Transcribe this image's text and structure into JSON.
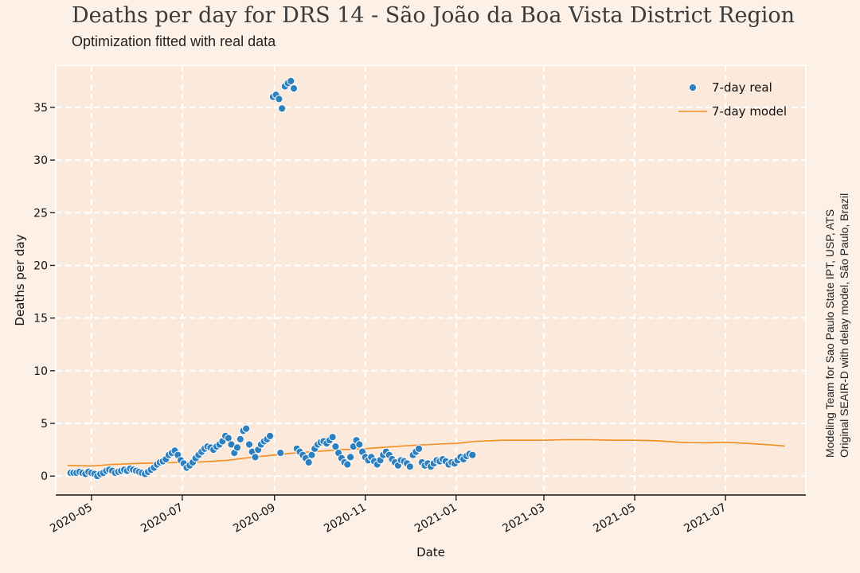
{
  "chart_data": {
    "type": "scatter",
    "title": "Deaths per day for DRS 14 - São João da Boa Vista District Region",
    "subtitle": "Optimization fitted with real data",
    "xlabel": "Date",
    "ylabel": "Deaths per day",
    "side_note": [
      "Modeling Team for Sao Paulo State IPT, USP, ATS",
      "Original SEAIR-D with delay model, São Paulo, Brazil"
    ],
    "x_range": [
      "2020-04-07",
      "2021-08-24"
    ],
    "ylim": [
      -1.8,
      39
    ],
    "x_ticks": [
      "2020-05",
      "2020-07",
      "2020-09",
      "2020-11",
      "2021-01",
      "2021-03",
      "2021-05",
      "2021-07"
    ],
    "y_ticks": [
      0,
      5,
      10,
      15,
      20,
      25,
      30,
      35
    ],
    "grid": true,
    "legend_position": "top-right",
    "colors": {
      "real": "#2e7fbe",
      "model": "#f28e1e",
      "plot_bg": "#fbe9dc",
      "grid": "#ffffff"
    },
    "series": [
      {
        "name": "7-day real",
        "kind": "scatter",
        "points": [
          [
            "2020-04-17",
            0.3
          ],
          [
            "2020-04-19",
            0.3
          ],
          [
            "2020-04-21",
            0.3
          ],
          [
            "2020-04-23",
            0.4
          ],
          [
            "2020-04-25",
            0.3
          ],
          [
            "2020-04-27",
            0.2
          ],
          [
            "2020-04-29",
            0.4
          ],
          [
            "2020-05-01",
            0.3
          ],
          [
            "2020-05-03",
            0.2
          ],
          [
            "2020-05-05",
            0.0
          ],
          [
            "2020-05-07",
            0.2
          ],
          [
            "2020-05-09",
            0.3
          ],
          [
            "2020-05-11",
            0.5
          ],
          [
            "2020-05-13",
            0.6
          ],
          [
            "2020-05-15",
            0.5
          ],
          [
            "2020-05-17",
            0.3
          ],
          [
            "2020-05-19",
            0.4
          ],
          [
            "2020-05-21",
            0.5
          ],
          [
            "2020-05-23",
            0.6
          ],
          [
            "2020-05-25",
            0.5
          ],
          [
            "2020-05-27",
            0.7
          ],
          [
            "2020-05-29",
            0.6
          ],
          [
            "2020-05-31",
            0.5
          ],
          [
            "2020-06-02",
            0.4
          ],
          [
            "2020-06-04",
            0.3
          ],
          [
            "2020-06-06",
            0.2
          ],
          [
            "2020-06-08",
            0.4
          ],
          [
            "2020-06-10",
            0.6
          ],
          [
            "2020-06-12",
            0.8
          ],
          [
            "2020-06-14",
            1.1
          ],
          [
            "2020-06-16",
            1.3
          ],
          [
            "2020-06-18",
            1.4
          ],
          [
            "2020-06-20",
            1.6
          ],
          [
            "2020-06-22",
            2.0
          ],
          [
            "2020-06-24",
            2.2
          ],
          [
            "2020-06-26",
            2.4
          ],
          [
            "2020-06-28",
            2.0
          ],
          [
            "2020-06-30",
            1.5
          ],
          [
            "2020-07-02",
            1.2
          ],
          [
            "2020-07-04",
            0.8
          ],
          [
            "2020-07-06",
            1.0
          ],
          [
            "2020-07-08",
            1.3
          ],
          [
            "2020-07-10",
            1.7
          ],
          [
            "2020-07-12",
            2.0
          ],
          [
            "2020-07-14",
            2.3
          ],
          [
            "2020-07-16",
            2.6
          ],
          [
            "2020-07-18",
            2.8
          ],
          [
            "2020-07-20",
            2.7
          ],
          [
            "2020-07-22",
            2.5
          ],
          [
            "2020-07-24",
            2.8
          ],
          [
            "2020-07-26",
            3.0
          ],
          [
            "2020-07-28",
            3.3
          ],
          [
            "2020-07-30",
            3.8
          ],
          [
            "2020-08-01",
            3.6
          ],
          [
            "2020-08-03",
            3.0
          ],
          [
            "2020-08-05",
            2.2
          ],
          [
            "2020-08-07",
            2.7
          ],
          [
            "2020-08-09",
            3.5
          ],
          [
            "2020-08-11",
            4.3
          ],
          [
            "2020-08-13",
            4.5
          ],
          [
            "2020-08-15",
            3.0
          ],
          [
            "2020-08-17",
            2.3
          ],
          [
            "2020-08-19",
            1.8
          ],
          [
            "2020-08-21",
            2.5
          ],
          [
            "2020-08-23",
            3.0
          ],
          [
            "2020-08-25",
            3.3
          ],
          [
            "2020-08-27",
            3.5
          ],
          [
            "2020-08-29",
            3.8
          ],
          [
            "2020-08-31",
            36.0
          ],
          [
            "2020-09-02",
            36.2
          ],
          [
            "2020-09-04",
            35.8
          ],
          [
            "2020-09-06",
            34.9
          ],
          [
            "2020-09-08",
            37.0
          ],
          [
            "2020-09-10",
            37.3
          ],
          [
            "2020-09-12",
            37.5
          ],
          [
            "2020-09-14",
            36.8
          ],
          [
            "2020-09-05",
            2.2
          ],
          [
            "2020-09-16",
            2.6
          ],
          [
            "2020-09-18",
            2.3
          ],
          [
            "2020-09-20",
            2.0
          ],
          [
            "2020-09-22",
            1.7
          ],
          [
            "2020-09-24",
            1.3
          ],
          [
            "2020-09-26",
            2.0
          ],
          [
            "2020-09-28",
            2.6
          ],
          [
            "2020-09-30",
            3.0
          ],
          [
            "2020-10-02",
            3.2
          ],
          [
            "2020-10-04",
            3.3
          ],
          [
            "2020-10-06",
            3.1
          ],
          [
            "2020-10-08",
            3.4
          ],
          [
            "2020-10-10",
            3.7
          ],
          [
            "2020-10-12",
            2.8
          ],
          [
            "2020-10-14",
            2.2
          ],
          [
            "2020-10-16",
            1.7
          ],
          [
            "2020-10-18",
            1.3
          ],
          [
            "2020-10-20",
            1.1
          ],
          [
            "2020-10-22",
            1.8
          ],
          [
            "2020-10-24",
            2.8
          ],
          [
            "2020-10-26",
            3.4
          ],
          [
            "2020-10-28",
            3.0
          ],
          [
            "2020-10-30",
            2.3
          ],
          [
            "2020-11-01",
            1.8
          ],
          [
            "2020-11-03",
            1.5
          ],
          [
            "2020-11-05",
            1.8
          ],
          [
            "2020-11-07",
            1.4
          ],
          [
            "2020-11-09",
            1.1
          ],
          [
            "2020-11-11",
            1.5
          ],
          [
            "2020-11-13",
            2.0
          ],
          [
            "2020-11-15",
            2.3
          ],
          [
            "2020-11-17",
            2.0
          ],
          [
            "2020-11-19",
            1.6
          ],
          [
            "2020-11-21",
            1.3
          ],
          [
            "2020-11-23",
            1.0
          ],
          [
            "2020-11-25",
            1.5
          ],
          [
            "2020-11-27",
            1.4
          ],
          [
            "2020-11-29",
            1.2
          ],
          [
            "2020-12-01",
            0.9
          ],
          [
            "2020-12-03",
            2.0
          ],
          [
            "2020-12-05",
            2.3
          ],
          [
            "2020-12-07",
            2.6
          ],
          [
            "2020-12-09",
            1.3
          ],
          [
            "2020-12-11",
            1.0
          ],
          [
            "2020-12-13",
            1.2
          ],
          [
            "2020-12-15",
            0.9
          ],
          [
            "2020-12-17",
            1.2
          ],
          [
            "2020-12-19",
            1.5
          ],
          [
            "2020-12-21",
            1.4
          ],
          [
            "2020-12-23",
            1.6
          ],
          [
            "2020-12-25",
            1.4
          ],
          [
            "2020-12-27",
            1.1
          ],
          [
            "2020-12-29",
            1.3
          ],
          [
            "2020-12-31",
            1.2
          ],
          [
            "2021-01-02",
            1.5
          ],
          [
            "2021-01-04",
            1.8
          ],
          [
            "2021-01-06",
            1.6
          ],
          [
            "2021-01-08",
            1.9
          ],
          [
            "2021-01-10",
            2.1
          ],
          [
            "2021-01-12",
            2.0
          ]
        ]
      },
      {
        "name": "7-day model",
        "kind": "line",
        "points": [
          [
            "2020-04-15",
            1.0
          ],
          [
            "2020-05-01",
            0.95
          ],
          [
            "2020-05-15",
            1.1
          ],
          [
            "2020-06-01",
            1.2
          ],
          [
            "2020-06-15",
            1.25
          ],
          [
            "2020-07-01",
            1.3
          ],
          [
            "2020-07-15",
            1.35
          ],
          [
            "2020-08-01",
            1.5
          ],
          [
            "2020-08-15",
            1.75
          ],
          [
            "2020-09-01",
            2.0
          ],
          [
            "2020-09-15",
            2.2
          ],
          [
            "2020-10-01",
            2.35
          ],
          [
            "2020-10-15",
            2.5
          ],
          [
            "2020-11-01",
            2.6
          ],
          [
            "2020-11-15",
            2.75
          ],
          [
            "2020-12-01",
            2.9
          ],
          [
            "2020-12-15",
            3.0
          ],
          [
            "2021-01-01",
            3.1
          ],
          [
            "2021-01-15",
            3.3
          ],
          [
            "2021-02-01",
            3.4
          ],
          [
            "2021-02-15",
            3.4
          ],
          [
            "2021-03-01",
            3.4
          ],
          [
            "2021-03-15",
            3.45
          ],
          [
            "2021-04-01",
            3.45
          ],
          [
            "2021-04-15",
            3.4
          ],
          [
            "2021-05-01",
            3.4
          ],
          [
            "2021-05-15",
            3.35
          ],
          [
            "2021-06-01",
            3.2
          ],
          [
            "2021-06-15",
            3.15
          ],
          [
            "2021-07-01",
            3.2
          ],
          [
            "2021-07-15",
            3.1
          ],
          [
            "2021-08-01",
            2.95
          ],
          [
            "2021-08-10",
            2.85
          ]
        ]
      }
    ]
  }
}
